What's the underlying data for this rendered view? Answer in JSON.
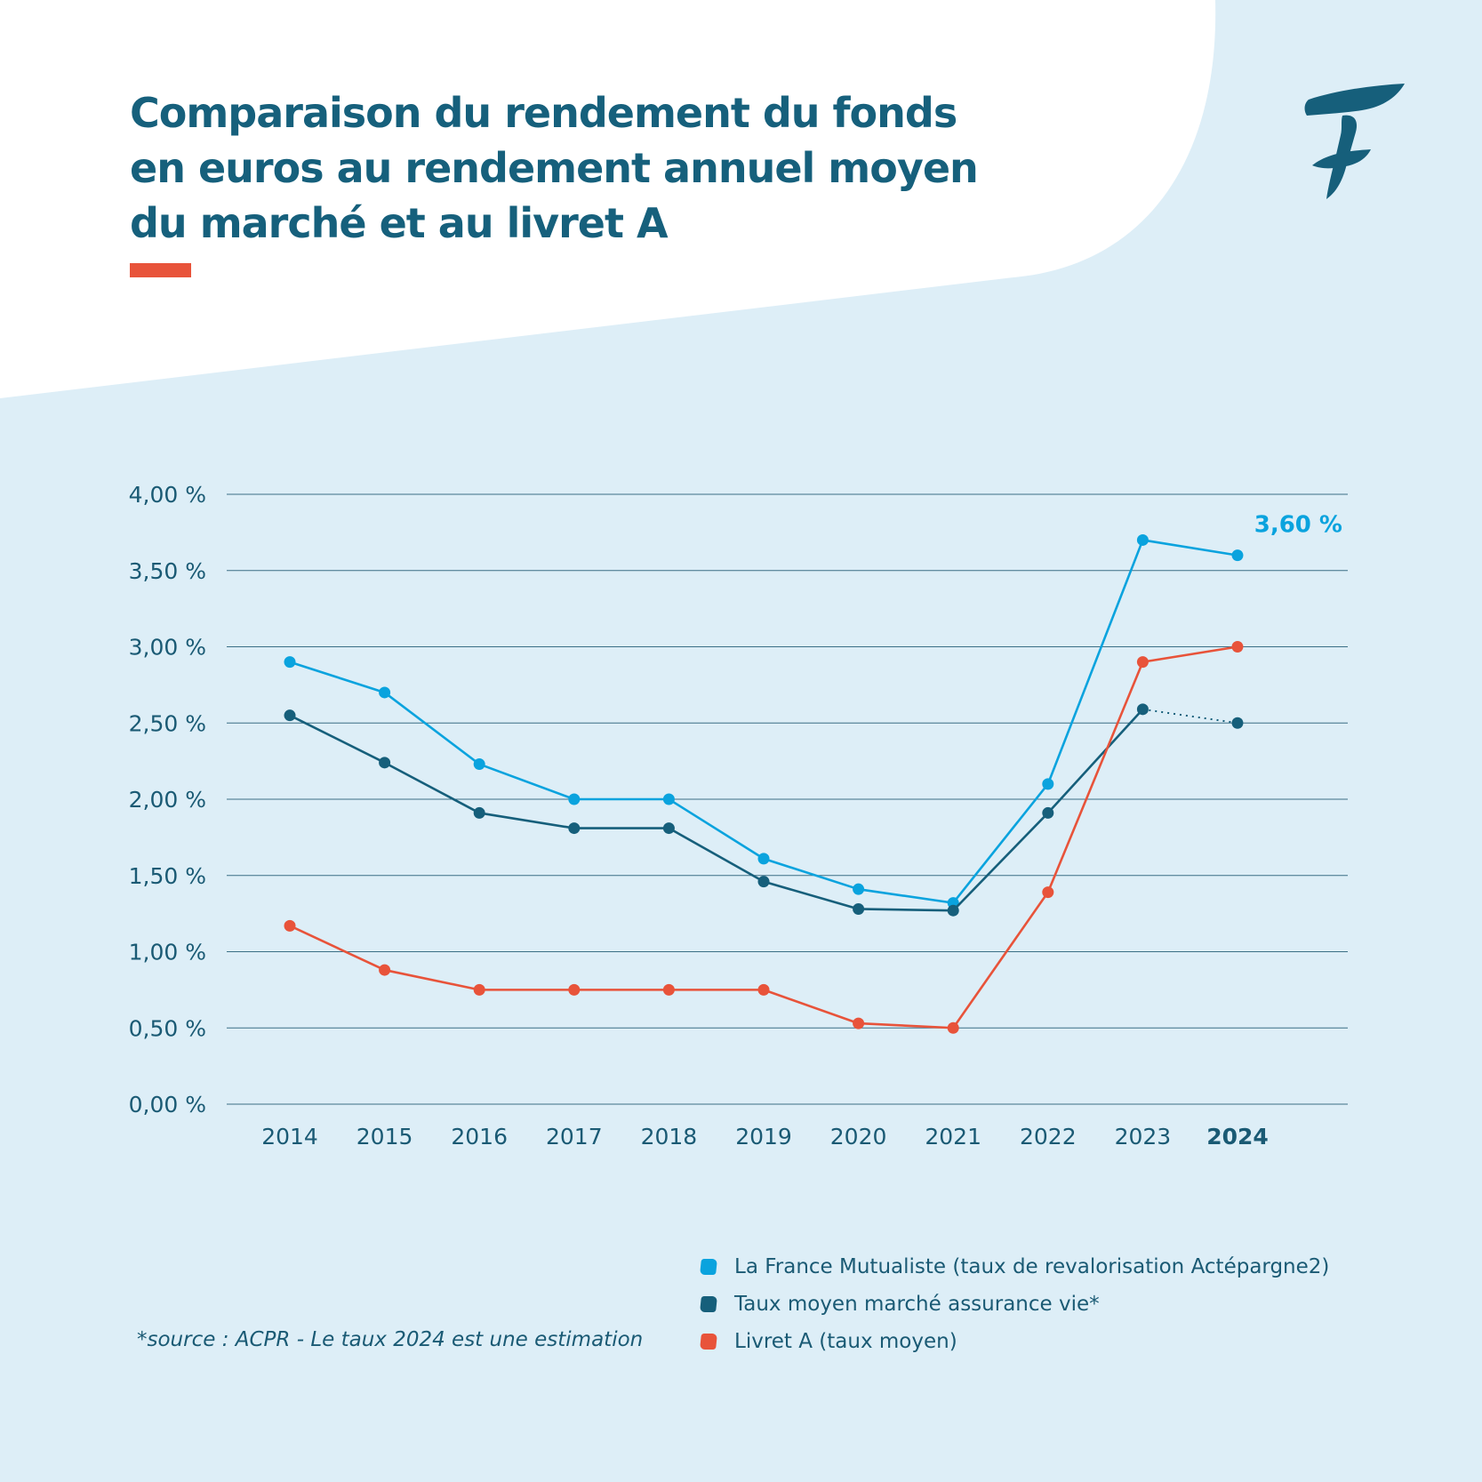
{
  "title": "Comparaison du rendement du fonds\nen euros au rendement annuel moyen\ndu marché et au livret A",
  "colors": {
    "background": "#ddeef7",
    "panel": "#ffffff",
    "title": "#16607c",
    "accent": "#e8533a",
    "grid": "#3b6f86",
    "axis_text": "#1a5a74"
  },
  "logo_icon": "la-france-mutualiste-f-logo",
  "chart_data": {
    "type": "line",
    "title": "",
    "xlabel": "",
    "ylabel": "",
    "x": [
      "2014",
      "2015",
      "2016",
      "2017",
      "2018",
      "2019",
      "2020",
      "2021",
      "2022",
      "2023",
      "2024"
    ],
    "highlight_x": "2024",
    "yticks": [
      0,
      0.5,
      1.0,
      1.5,
      2.0,
      2.5,
      3.0,
      3.5,
      4.0
    ],
    "ytick_labels": [
      "0,00 %",
      "0,50 %",
      "1,00 %",
      "1,50 %",
      "2,00 %",
      "2,50 %",
      "3,00 %",
      "3,50 %",
      "4,00 %"
    ],
    "ylim": [
      0,
      4
    ],
    "grid": true,
    "legend_position": "bottom-right",
    "series": [
      {
        "name": "La France Mutualiste (taux de revalorisation Actépargne2)",
        "color": "#0aa3de",
        "values": [
          2.9,
          2.7,
          2.23,
          2.0,
          2.0,
          1.61,
          1.41,
          1.32,
          2.1,
          3.7,
          3.6
        ]
      },
      {
        "name": "Taux moyen marché assurance vie*",
        "color": "#165f7b",
        "values": [
          2.55,
          2.24,
          1.91,
          1.81,
          1.81,
          1.46,
          1.28,
          1.27,
          1.91,
          2.59,
          2.5
        ],
        "dotted_last_segment": true
      },
      {
        "name": "Livret A (taux moyen)",
        "color": "#e8533a",
        "values": [
          1.17,
          0.88,
          0.75,
          0.75,
          0.75,
          0.75,
          0.53,
          0.5,
          1.39,
          2.9,
          3.0
        ]
      }
    ],
    "annotations": [
      {
        "text": "3,60 %",
        "series": 0,
        "x": "2024",
        "color": "#0aa3de"
      }
    ]
  },
  "footnote": "*source : ACPR - Le taux 2024 est une estimation"
}
